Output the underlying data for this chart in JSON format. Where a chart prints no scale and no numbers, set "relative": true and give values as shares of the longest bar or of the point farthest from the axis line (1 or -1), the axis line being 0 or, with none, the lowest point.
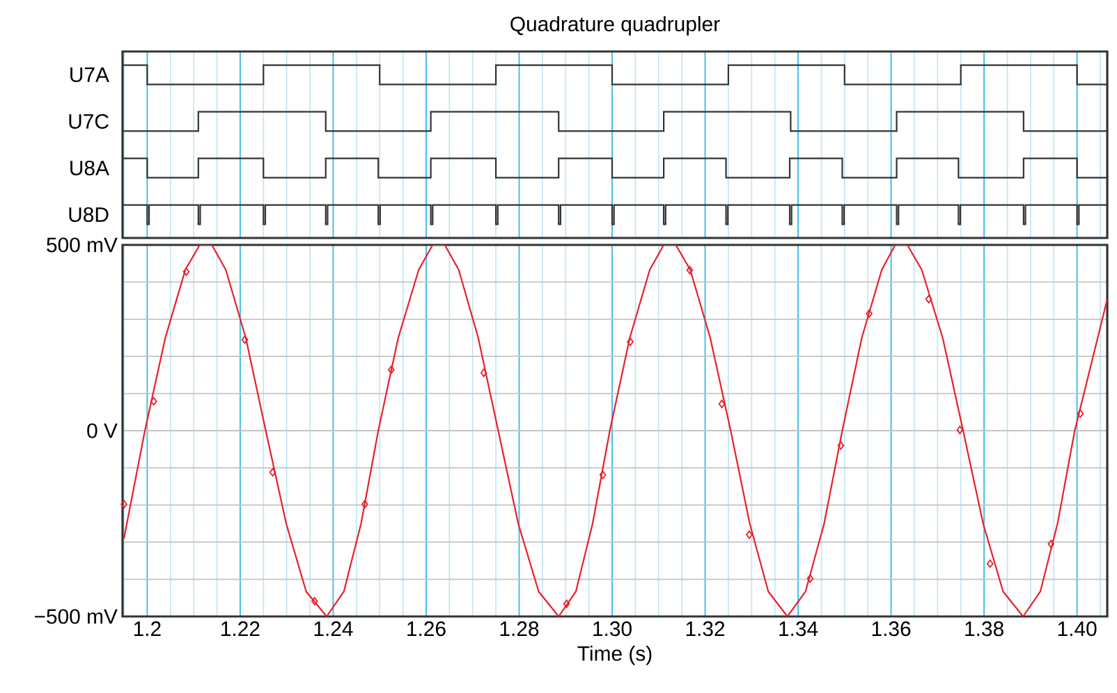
{
  "chart_data": [
    {
      "type": "step",
      "title": "Quadrature quadrupler",
      "ylabel": "U7A",
      "relative": true,
      "color": "#333333",
      "grid": "x",
      "tick_labels": false,
      "xlim": [
        1.1947,
        1.4065
      ],
      "xticks": [
        {
          "value": 1.195,
          "label": null
        },
        1.2,
        {
          "value": 1.205,
          "label": null
        },
        {
          "value": 1.21,
          "label": null
        },
        {
          "value": 1.215,
          "label": null
        },
        1.22,
        {
          "value": 1.225,
          "label": null
        },
        {
          "value": 1.23,
          "label": null
        },
        {
          "value": 1.235,
          "label": null
        },
        1.24,
        {
          "value": 1.245,
          "label": null
        },
        {
          "value": 1.25,
          "label": null
        },
        {
          "value": 1.255,
          "label": null
        },
        1.26,
        {
          "value": 1.265,
          "label": null
        },
        {
          "value": 1.27,
          "label": null
        },
        {
          "value": 1.275,
          "label": null
        },
        1.28,
        {
          "value": 1.285,
          "label": null
        },
        {
          "value": 1.29,
          "label": null
        },
        {
          "value": 1.295,
          "label": null
        },
        1.3,
        {
          "value": 1.305,
          "label": null
        },
        {
          "value": 1.31,
          "label": null
        },
        {
          "value": 1.315,
          "label": null
        },
        1.32,
        {
          "value": 1.325,
          "label": null
        },
        {
          "value": 1.33,
          "label": null
        },
        {
          "value": 1.335,
          "label": null
        },
        1.34,
        {
          "value": 1.345,
          "label": null
        },
        {
          "value": 1.35,
          "label": null
        },
        {
          "value": 1.355,
          "label": null
        },
        1.36,
        {
          "value": 1.365,
          "label": null
        },
        {
          "value": 1.37,
          "label": null
        },
        {
          "value": 1.375,
          "label": null
        },
        1.38,
        {
          "value": 1.385,
          "label": null
        },
        {
          "value": 1.39,
          "label": null
        },
        {
          "value": 1.395,
          "label": null
        },
        1.4,
        {
          "value": 1.405,
          "label": null
        }
      ],
      "x": [
        1.1947,
        1.2,
        1.225,
        1.25,
        1.275,
        1.3,
        1.325,
        1.35,
        1.375,
        1.4,
        1.4065
      ],
      "values": [
        1,
        0,
        1,
        0,
        1,
        0,
        1,
        0,
        1,
        0,
        0
      ]
    },
    {
      "type": "step",
      "ylabel": "U7C",
      "relative": true,
      "color": "#333333",
      "grid": "x",
      "tick_labels": false,
      "xlim": [
        1.1947,
        1.4065
      ],
      "xticks": [
        {
          "value": 1.195,
          "label": null
        },
        1.2,
        {
          "value": 1.205,
          "label": null
        },
        {
          "value": 1.21,
          "label": null
        },
        {
          "value": 1.215,
          "label": null
        },
        1.22,
        {
          "value": 1.225,
          "label": null
        },
        {
          "value": 1.23,
          "label": null
        },
        {
          "value": 1.235,
          "label": null
        },
        1.24,
        {
          "value": 1.245,
          "label": null
        },
        {
          "value": 1.25,
          "label": null
        },
        {
          "value": 1.255,
          "label": null
        },
        1.26,
        {
          "value": 1.265,
          "label": null
        },
        {
          "value": 1.27,
          "label": null
        },
        {
          "value": 1.275,
          "label": null
        },
        1.28,
        {
          "value": 1.285,
          "label": null
        },
        {
          "value": 1.29,
          "label": null
        },
        {
          "value": 1.295,
          "label": null
        },
        1.3,
        {
          "value": 1.305,
          "label": null
        },
        {
          "value": 1.31,
          "label": null
        },
        {
          "value": 1.315,
          "label": null
        },
        1.32,
        {
          "value": 1.325,
          "label": null
        },
        {
          "value": 1.33,
          "label": null
        },
        {
          "value": 1.335,
          "label": null
        },
        1.34,
        {
          "value": 1.345,
          "label": null
        },
        {
          "value": 1.35,
          "label": null
        },
        {
          "value": 1.355,
          "label": null
        },
        1.36,
        {
          "value": 1.365,
          "label": null
        },
        {
          "value": 1.37,
          "label": null
        },
        {
          "value": 1.375,
          "label": null
        },
        1.38,
        {
          "value": 1.385,
          "label": null
        },
        {
          "value": 1.39,
          "label": null
        },
        {
          "value": 1.395,
          "label": null
        },
        1.4,
        {
          "value": 1.405,
          "label": null
        }
      ],
      "x": [
        1.1947,
        1.211,
        1.2384,
        1.261,
        1.2885,
        1.3111,
        1.3384,
        1.3612,
        1.3885,
        1.4065
      ],
      "values": [
        0,
        1,
        0,
        1,
        0,
        1,
        0,
        1,
        0,
        0
      ]
    },
    {
      "type": "step",
      "ylabel": "U8A",
      "relative": true,
      "color": "#333333",
      "grid": "x",
      "tick_labels": false,
      "xlim": [
        1.1947,
        1.4065
      ],
      "xticks": [
        {
          "value": 1.195,
          "label": null
        },
        1.2,
        {
          "value": 1.205,
          "label": null
        },
        {
          "value": 1.21,
          "label": null
        },
        {
          "value": 1.215,
          "label": null
        },
        1.22,
        {
          "value": 1.225,
          "label": null
        },
        {
          "value": 1.23,
          "label": null
        },
        {
          "value": 1.235,
          "label": null
        },
        1.24,
        {
          "value": 1.245,
          "label": null
        },
        {
          "value": 1.25,
          "label": null
        },
        {
          "value": 1.255,
          "label": null
        },
        1.26,
        {
          "value": 1.265,
          "label": null
        },
        {
          "value": 1.27,
          "label": null
        },
        {
          "value": 1.275,
          "label": null
        },
        1.28,
        {
          "value": 1.285,
          "label": null
        },
        {
          "value": 1.29,
          "label": null
        },
        {
          "value": 1.295,
          "label": null
        },
        1.3,
        {
          "value": 1.305,
          "label": null
        },
        {
          "value": 1.31,
          "label": null
        },
        {
          "value": 1.315,
          "label": null
        },
        1.32,
        {
          "value": 1.325,
          "label": null
        },
        {
          "value": 1.33,
          "label": null
        },
        {
          "value": 1.335,
          "label": null
        },
        1.34,
        {
          "value": 1.345,
          "label": null
        },
        {
          "value": 1.35,
          "label": null
        },
        {
          "value": 1.355,
          "label": null
        },
        1.36,
        {
          "value": 1.365,
          "label": null
        },
        {
          "value": 1.37,
          "label": null
        },
        {
          "value": 1.375,
          "label": null
        },
        1.38,
        {
          "value": 1.385,
          "label": null
        },
        {
          "value": 1.39,
          "label": null
        },
        {
          "value": 1.395,
          "label": null
        },
        1.4,
        {
          "value": 1.405,
          "label": null
        }
      ],
      "x": [
        1.1947,
        1.2,
        1.211,
        1.225,
        1.2384,
        1.2497,
        1.261,
        1.275,
        1.2885,
        1.3,
        1.3111,
        1.3245,
        1.3382,
        1.3495,
        1.3612,
        1.3745,
        1.3885,
        1.4,
        1.4065
      ],
      "values": [
        1,
        0,
        1,
        0,
        1,
        0,
        1,
        0,
        1,
        0,
        1,
        0,
        1,
        0,
        1,
        0,
        1,
        0,
        0
      ]
    },
    {
      "type": "step",
      "ylabel": "U8D",
      "relative": true,
      "color": "#333333",
      "grid": "x",
      "tick_labels": false,
      "xlim": [
        1.1947,
        1.4065
      ],
      "xticks": [
        {
          "value": 1.195,
          "label": null
        },
        1.2,
        {
          "value": 1.205,
          "label": null
        },
        {
          "value": 1.21,
          "label": null
        },
        {
          "value": 1.215,
          "label": null
        },
        1.22,
        {
          "value": 1.225,
          "label": null
        },
        {
          "value": 1.23,
          "label": null
        },
        {
          "value": 1.235,
          "label": null
        },
        1.24,
        {
          "value": 1.245,
          "label": null
        },
        {
          "value": 1.25,
          "label": null
        },
        {
          "value": 1.255,
          "label": null
        },
        1.26,
        {
          "value": 1.265,
          "label": null
        },
        {
          "value": 1.27,
          "label": null
        },
        {
          "value": 1.275,
          "label": null
        },
        1.28,
        {
          "value": 1.285,
          "label": null
        },
        {
          "value": 1.29,
          "label": null
        },
        {
          "value": 1.295,
          "label": null
        },
        1.3,
        {
          "value": 1.305,
          "label": null
        },
        {
          "value": 1.31,
          "label": null
        },
        {
          "value": 1.315,
          "label": null
        },
        1.32,
        {
          "value": 1.325,
          "label": null
        },
        {
          "value": 1.33,
          "label": null
        },
        {
          "value": 1.335,
          "label": null
        },
        1.34,
        {
          "value": 1.345,
          "label": null
        },
        {
          "value": 1.35,
          "label": null
        },
        {
          "value": 1.355,
          "label": null
        },
        1.36,
        {
          "value": 1.365,
          "label": null
        },
        {
          "value": 1.37,
          "label": null
        },
        {
          "value": 1.375,
          "label": null
        },
        1.38,
        {
          "value": 1.385,
          "label": null
        },
        {
          "value": 1.39,
          "label": null
        },
        {
          "value": 1.395,
          "label": null
        },
        1.4,
        {
          "value": 1.405,
          "label": null
        }
      ],
      "x": [
        1.1947,
        1.2,
        1.2004,
        1.211,
        1.2114,
        1.225,
        1.2254,
        1.2384,
        1.2388,
        1.2497,
        1.2501,
        1.261,
        1.2614,
        1.275,
        1.2754,
        1.2885,
        1.2889,
        1.3,
        1.3004,
        1.3111,
        1.3115,
        1.3245,
        1.3249,
        1.3382,
        1.3386,
        1.3495,
        1.3499,
        1.3612,
        1.3616,
        1.3745,
        1.3749,
        1.3885,
        1.3889,
        1.4,
        1.4004,
        1.4065
      ],
      "values": [
        1,
        0,
        1,
        0,
        1,
        0,
        1,
        0,
        1,
        0,
        1,
        0,
        1,
        0,
        1,
        0,
        1,
        0,
        1,
        0,
        1,
        0,
        1,
        0,
        1,
        0,
        1,
        0,
        1,
        0,
        1,
        0,
        1,
        0,
        1,
        1
      ]
    },
    {
      "type": "line",
      "xlabel": "Time (s)",
      "grid": true,
      "xlim": [
        1.1947,
        1.4065
      ],
      "ylim": [
        -500,
        500
      ],
      "xticks": [
        {
          "value": 1.195,
          "label": null
        },
        1.2,
        {
          "value": 1.205,
          "label": null
        },
        {
          "value": 1.21,
          "label": null
        },
        {
          "value": 1.215,
          "label": null
        },
        1.22,
        {
          "value": 1.225,
          "label": null
        },
        {
          "value": 1.23,
          "label": null
        },
        {
          "value": 1.235,
          "label": null
        },
        1.24,
        {
          "value": 1.245,
          "label": null
        },
        {
          "value": 1.25,
          "label": null
        },
        {
          "value": 1.255,
          "label": null
        },
        1.26,
        {
          "value": 1.265,
          "label": null
        },
        {
          "value": 1.27,
          "label": null
        },
        {
          "value": 1.275,
          "label": null
        },
        1.28,
        {
          "value": 1.285,
          "label": null
        },
        {
          "value": 1.29,
          "label": null
        },
        {
          "value": 1.295,
          "label": null
        },
        {
          "value": 1.3,
          "label": "1.30"
        },
        {
          "value": 1.305,
          "label": null
        },
        {
          "value": 1.31,
          "label": null
        },
        {
          "value": 1.315,
          "label": null
        },
        1.32,
        {
          "value": 1.325,
          "label": null
        },
        {
          "value": 1.33,
          "label": null
        },
        {
          "value": 1.335,
          "label": null
        },
        1.34,
        {
          "value": 1.345,
          "label": null
        },
        {
          "value": 1.35,
          "label": null
        },
        {
          "value": 1.355,
          "label": null
        },
        1.36,
        {
          "value": 1.365,
          "label": null
        },
        {
          "value": 1.37,
          "label": null
        },
        {
          "value": 1.375,
          "label": null
        },
        1.38,
        {
          "value": 1.385,
          "label": null
        },
        {
          "value": 1.39,
          "label": null
        },
        {
          "value": 1.395,
          "label": null
        },
        {
          "value": 1.4,
          "label": "1.40"
        },
        {
          "value": 1.405,
          "label": null
        }
      ],
      "yticks": [
        {
          "value": -500,
          "label": "−500 mV"
        },
        {
          "value": -400,
          "label": null
        },
        {
          "value": -300,
          "label": null
        },
        {
          "value": -200,
          "label": null
        },
        {
          "value": -100,
          "label": null
        },
        {
          "value": 0,
          "label": "0 V"
        },
        {
          "value": 100,
          "label": null
        },
        {
          "value": 200,
          "label": null
        },
        {
          "value": 300,
          "label": null
        },
        {
          "value": 400,
          "label": null
        },
        {
          "value": 500,
          "label": "500 mV"
        }
      ],
      "series": [
        {
          "type": "line",
          "color": "#e8202a",
          "x": [
            1.195,
            1.1995,
            1.2039,
            1.2082,
            1.2113,
            1.2126,
            1.2139,
            1.2169,
            1.2212,
            1.2255,
            1.2299,
            1.2342,
            1.2386,
            1.2423,
            1.246,
            1.2497,
            1.254,
            1.2584,
            1.2614,
            1.2627,
            1.264,
            1.267,
            1.2712,
            1.2755,
            1.2798,
            1.2842,
            1.2885,
            1.2922,
            1.2958,
            1.2995,
            1.3038,
            1.3081,
            1.3111,
            1.3124,
            1.3137,
            1.3168,
            1.3211,
            1.3255,
            1.3296,
            1.3336,
            1.3377,
            1.3416,
            1.3456,
            1.3495,
            1.3537,
            1.358,
            1.3609,
            1.3622,
            1.3635,
            1.3666,
            1.3711,
            1.3755,
            1.3798,
            1.3841,
            1.3884,
            1.3921,
            1.3958,
            1.3995,
            1.4065
          ],
          "values": [
            -290,
            0,
            250,
            433,
            500,
            500,
            500,
            433,
            250,
            0,
            -250,
            -433,
            -500,
            -433,
            -250,
            0,
            250,
            433,
            500,
            500,
            500,
            433,
            250,
            0,
            -250,
            -433,
            -500,
            -433,
            -250,
            0,
            250,
            433,
            500,
            500,
            500,
            433,
            250,
            0,
            -250,
            -433,
            -500,
            -433,
            -250,
            0,
            250,
            433,
            500,
            500,
            500,
            433,
            250,
            0,
            -250,
            -433,
            -500,
            -433,
            -250,
            0,
            354
          ]
        },
        {
          "type": "scatter",
          "color": "#e8202a",
          "marker": "diamond",
          "x": [
            1.195,
            1.2014,
            1.2084,
            1.221,
            1.227,
            1.236,
            1.2468,
            1.2525,
            1.2724,
            1.2902,
            1.298,
            1.3039,
            1.3167,
            1.3236,
            1.3295,
            1.3426,
            1.3492,
            1.3553,
            1.3681,
            1.3748,
            1.3813,
            1.3944,
            1.4007
          ],
          "values": [
            -198,
            79,
            428,
            245,
            -112,
            -459,
            -198,
            164,
            156,
            -466,
            -119,
            239,
            432,
            72,
            -280,
            -398,
            -40,
            315,
            354,
            2,
            -358,
            -305,
            46
          ]
        }
      ]
    }
  ]
}
